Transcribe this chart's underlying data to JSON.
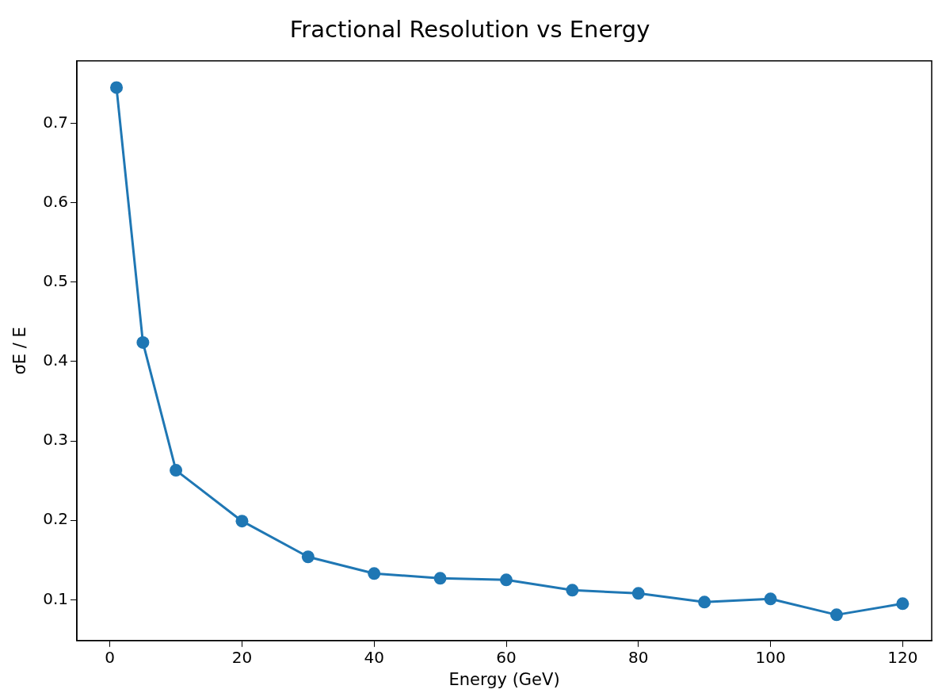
{
  "chart_data": {
    "type": "line",
    "title": "Fractional Resolution vs Energy",
    "xlabel": "Energy (GeV)",
    "ylabel": "σE / E",
    "x": [
      1,
      5,
      10,
      20,
      30,
      40,
      50,
      60,
      70,
      80,
      90,
      100,
      110,
      120
    ],
    "series": [
      {
        "color": "#1f77b4",
        "values": [
          0.745,
          0.424,
          0.263,
          0.199,
          0.154,
          0.133,
          0.127,
          0.125,
          0.112,
          0.108,
          0.097,
          0.101,
          0.081,
          0.095
        ]
      }
    ],
    "xlim": [
      -5,
      124.4
    ],
    "ylim": [
      0.0486,
      0.7786
    ],
    "xticks": [
      0,
      20,
      40,
      60,
      80,
      100,
      120
    ],
    "yticks": [
      0.1,
      0.2,
      0.3,
      0.4,
      0.5,
      0.6,
      0.7
    ],
    "grid": false,
    "legend": false,
    "marker": "circle",
    "line_style": "solid"
  }
}
